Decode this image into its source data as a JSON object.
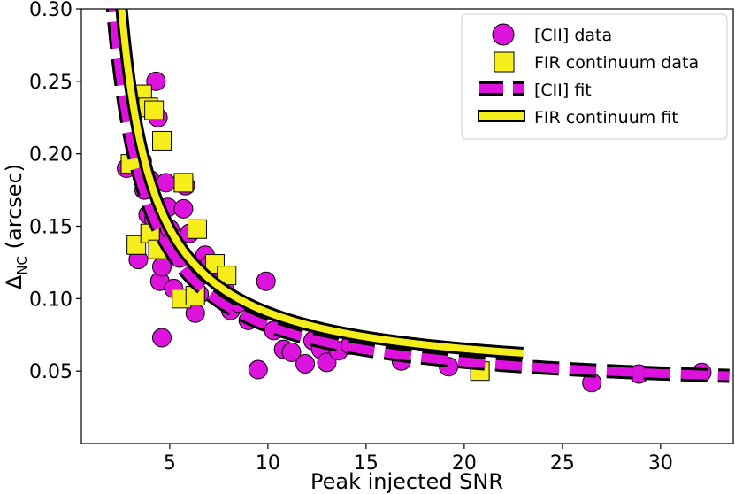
{
  "chart_data": {
    "type": "scatter",
    "title": "",
    "xlabel": "Peak injected SNR",
    "ylabel_main": "Δ",
    "ylabel_sub": "NC",
    "ylabel_unit": " (arcsec)",
    "xlim": [
      0.5,
      33.7
    ],
    "ylim": [
      0.0,
      0.3
    ],
    "xticks": [
      5,
      10,
      15,
      20,
      25,
      30
    ],
    "yticks": [
      0.05,
      0.1,
      0.15,
      0.2,
      0.25,
      0.3
    ],
    "ytick_labels": [
      "0.05",
      "0.10",
      "0.15",
      "0.20",
      "0.25",
      "0.30"
    ],
    "grid": false,
    "legend_position": "top-right",
    "colors": {
      "cii": "#dd12dd",
      "fir": "#f5ee1a",
      "outline": "#000000"
    },
    "series": [
      {
        "name": "[CII] data",
        "kind": "scatter",
        "marker": "circle",
        "points": [
          [
            2.8,
            0.19
          ],
          [
            3.4,
            0.127
          ],
          [
            3.6,
            0.195
          ],
          [
            3.7,
            0.175
          ],
          [
            3.9,
            0.158
          ],
          [
            4.0,
            0.182
          ],
          [
            4.2,
            0.155
          ],
          [
            4.3,
            0.25
          ],
          [
            4.4,
            0.225
          ],
          [
            4.4,
            0.142
          ],
          [
            4.5,
            0.112
          ],
          [
            4.6,
            0.122
          ],
          [
            4.6,
            0.073
          ],
          [
            4.8,
            0.18
          ],
          [
            4.9,
            0.163
          ],
          [
            5.0,
            0.148
          ],
          [
            5.2,
            0.107
          ],
          [
            5.3,
            0.132
          ],
          [
            5.5,
            0.128
          ],
          [
            5.7,
            0.162
          ],
          [
            5.8,
            0.178
          ],
          [
            6.0,
            0.145
          ],
          [
            6.3,
            0.09
          ],
          [
            6.5,
            0.103
          ],
          [
            6.8,
            0.13
          ],
          [
            7.0,
            0.123
          ],
          [
            7.4,
            0.115
          ],
          [
            7.8,
            0.11
          ],
          [
            8.1,
            0.092
          ],
          [
            8.5,
            0.097
          ],
          [
            9.0,
            0.085
          ],
          [
            9.5,
            0.051
          ],
          [
            9.9,
            0.112
          ],
          [
            10.3,
            0.078
          ],
          [
            10.8,
            0.065
          ],
          [
            11.2,
            0.063
          ],
          [
            11.9,
            0.055
          ],
          [
            12.3,
            0.071
          ],
          [
            12.7,
            0.065
          ],
          [
            13.0,
            0.056
          ],
          [
            13.6,
            0.064
          ],
          [
            14.2,
            0.068
          ],
          [
            16.8,
            0.057
          ],
          [
            19.2,
            0.053
          ],
          [
            26.5,
            0.042
          ],
          [
            28.9,
            0.048
          ],
          [
            32.1,
            0.049
          ]
        ]
      },
      {
        "name": "FIR continuum data",
        "kind": "scatter",
        "marker": "square",
        "points": [
          [
            3.0,
            0.193
          ],
          [
            3.3,
            0.137
          ],
          [
            3.6,
            0.241
          ],
          [
            3.9,
            0.232
          ],
          [
            4.0,
            0.145
          ],
          [
            4.2,
            0.23
          ],
          [
            4.4,
            0.134
          ],
          [
            4.6,
            0.209
          ],
          [
            5.6,
            0.1
          ],
          [
            5.7,
            0.18
          ],
          [
            6.3,
            0.102
          ],
          [
            6.4,
            0.148
          ],
          [
            7.3,
            0.124
          ],
          [
            7.9,
            0.116
          ],
          [
            20.8,
            0.05
          ]
        ]
      },
      {
        "name": "[CII] fit",
        "kind": "line",
        "style": "dashed",
        "formula": "y = 0.47 / (x - 0.36) + 0.0325",
        "fit": {
          "a": 0.47,
          "b": 0.36,
          "c": 0.0325
        },
        "x_range": [
          1.5,
          33.5
        ]
      },
      {
        "name": "FIR continuum fit",
        "kind": "line",
        "style": "solid",
        "formula": "y = 0.44 / (x - 0.84) + 0.0425",
        "fit": {
          "a": 0.44,
          "b": 0.84,
          "c": 0.0425
        },
        "x_range": [
          2.05,
          23.0
        ]
      }
    ]
  }
}
